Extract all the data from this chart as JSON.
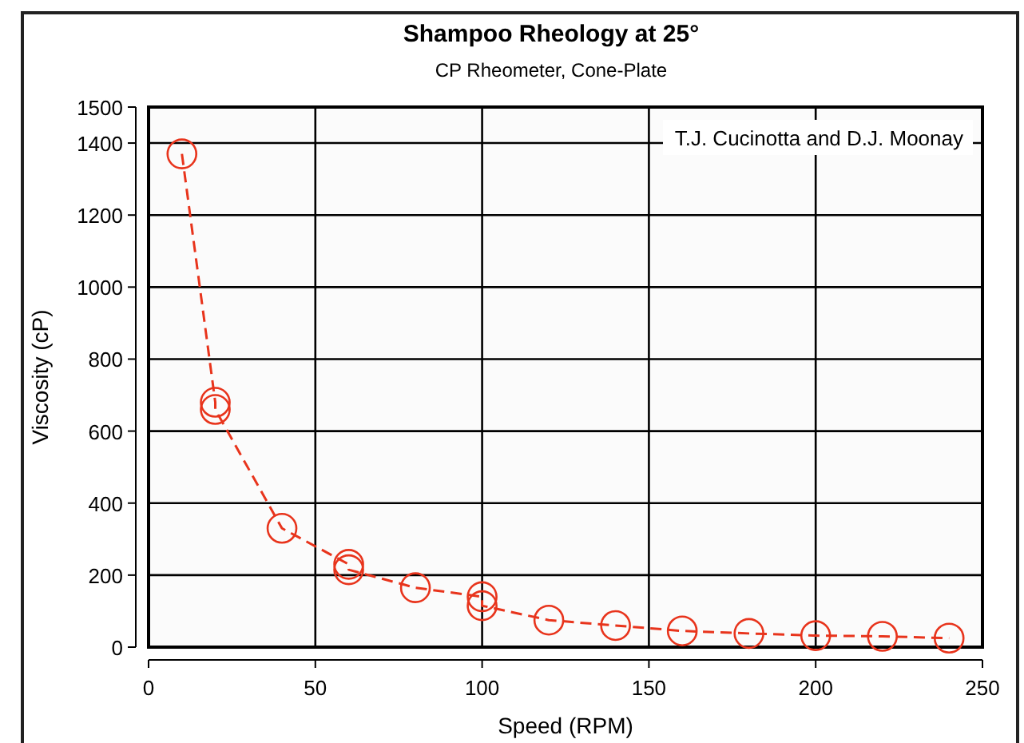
{
  "chart_data": {
    "type": "line",
    "title": "Shampoo Rheology at 25°",
    "subtitle": "CP Rheometer, Cone-Plate",
    "xlabel": "Speed (RPM)",
    "ylabel": "Viscosity (cP)",
    "annotations": [
      "T.J. Cucinotta and D.J. Moonay"
    ],
    "series": [
      {
        "color": "#e8341c",
        "x": [
          10,
          20,
          20,
          40,
          60,
          60,
          80,
          100,
          100,
          120,
          140,
          160,
          180,
          200,
          220,
          240
        ],
        "values": [
          1370,
          680,
          660,
          330,
          230,
          215,
          165,
          140,
          115,
          75,
          60,
          45,
          38,
          32,
          30,
          25
        ]
      }
    ],
    "xlim": [
      0,
      250
    ],
    "xticks": [
      0,
      50,
      100,
      150,
      200,
      250
    ],
    "ylim": [
      0,
      1500
    ],
    "yticks": [
      0,
      200,
      400,
      600,
      800,
      1000,
      1200,
      1400,
      1500
    ],
    "grid": true,
    "marker": "circle",
    "line_style": "dashed"
  }
}
